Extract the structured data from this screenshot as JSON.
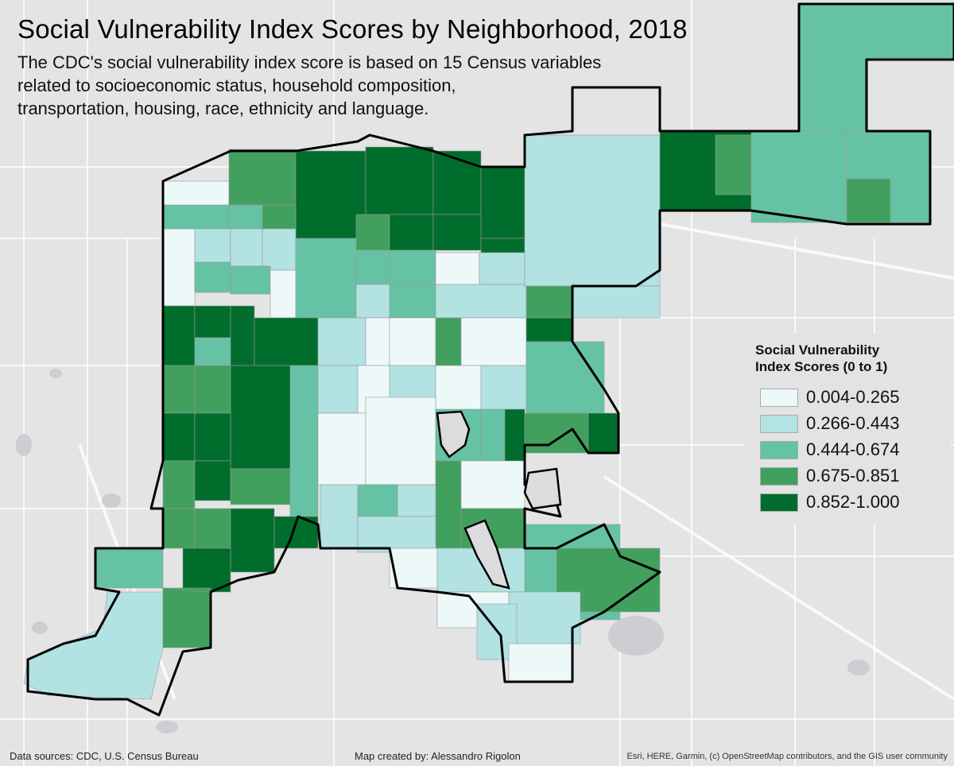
{
  "title": "Social Vulnerability Index Scores by Neighborhood, 2018",
  "subtitle": [
    "The CDC's social vulnerability index score is based on 15 Census variables",
    "related to socioeconomic status, household composition,",
    "transportation, housing, race, ethnicity and language."
  ],
  "legend": {
    "title": [
      "Social Vulnerability",
      "Index Scores (0 to 1)"
    ],
    "classes": [
      {
        "label": "0.004-0.265",
        "color": "#edf8f9"
      },
      {
        "label": "0.266-0.443",
        "color": "#b2e2e2"
      },
      {
        "label": "0.444-0.674",
        "color": "#66c2a4"
      },
      {
        "label": "0.675-0.851",
        "color": "#41a05e"
      },
      {
        "label": "0.852-1.000",
        "color": "#006d2c"
      }
    ]
  },
  "footer": {
    "sources": "Data sources: CDC, U.S. Census Bureau",
    "author": "Map created by: Alessandro Rigolon",
    "basemap_credit": "Esri, HERE, Garmin, (c) OpenStreetMap contributors, and the GIS user community"
  },
  "colors": {
    "background": "#e4e4e4",
    "boundary": "#000000",
    "roads": "#ffffff"
  }
}
